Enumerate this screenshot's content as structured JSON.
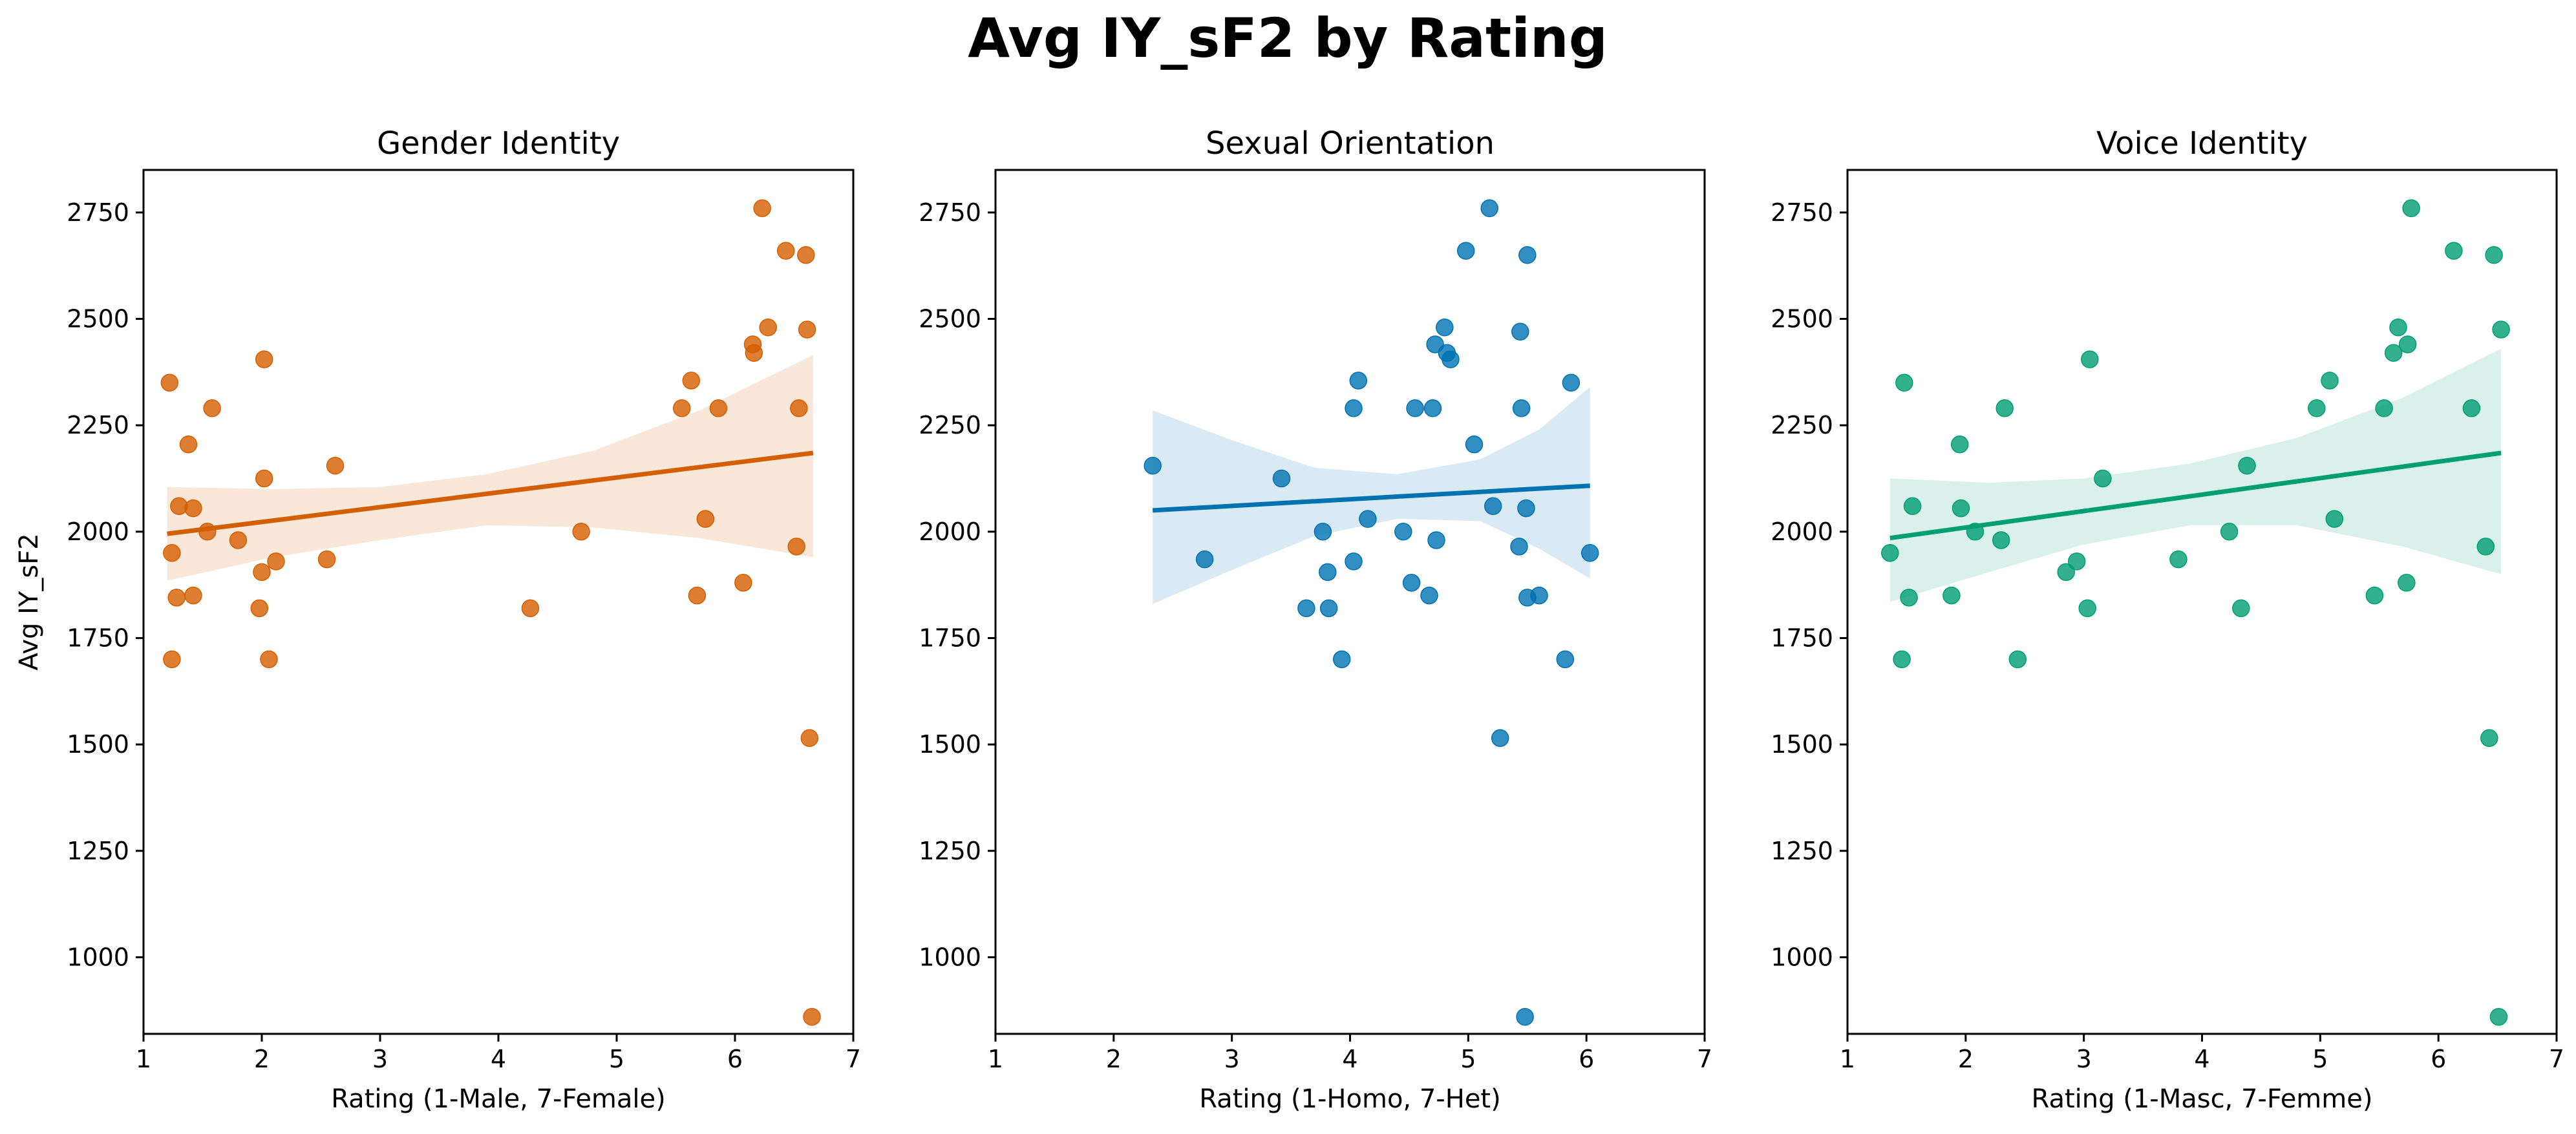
{
  "suptitle": "Avg IY_sF2 by Rating",
  "chart_data": [
    {
      "type": "scatter",
      "title": "Gender Identity",
      "xlabel": "Rating (1-Male, 7-Female)",
      "ylabel": "Avg IY_sF2",
      "xlim": [
        1,
        7
      ],
      "ylim": [
        820,
        2850
      ],
      "xticks": [
        1,
        2,
        3,
        4,
        5,
        6,
        7
      ],
      "yticks": [
        1000,
        1250,
        1500,
        1750,
        2000,
        2250,
        2500,
        2750
      ],
      "color": "#d55e00",
      "points": [
        [
          1.22,
          2350
        ],
        [
          1.24,
          1950
        ],
        [
          1.24,
          1700
        ],
        [
          1.28,
          1845
        ],
        [
          1.3,
          2060
        ],
        [
          1.38,
          2205
        ],
        [
          1.42,
          2055
        ],
        [
          1.42,
          1850
        ],
        [
          1.54,
          2000
        ],
        [
          1.58,
          2290
        ],
        [
          1.8,
          1980
        ],
        [
          1.98,
          1820
        ],
        [
          2.0,
          1905
        ],
        [
          2.02,
          2125
        ],
        [
          2.02,
          2405
        ],
        [
          2.06,
          1700
        ],
        [
          2.12,
          1930
        ],
        [
          2.55,
          1935
        ],
        [
          2.62,
          2155
        ],
        [
          4.27,
          1820
        ],
        [
          4.7,
          2000
        ],
        [
          5.55,
          2290
        ],
        [
          5.63,
          2355
        ],
        [
          5.68,
          1850
        ],
        [
          5.75,
          2030
        ],
        [
          5.86,
          2290
        ],
        [
          6.07,
          1880
        ],
        [
          6.15,
          2440
        ],
        [
          6.16,
          2420
        ],
        [
          6.23,
          2760
        ],
        [
          6.28,
          2480
        ],
        [
          6.43,
          2660
        ],
        [
          6.52,
          1965
        ],
        [
          6.54,
          2290
        ],
        [
          6.6,
          2650
        ],
        [
          6.61,
          2475
        ],
        [
          6.63,
          1515
        ],
        [
          6.65,
          860
        ]
      ],
      "fit_line": {
        "x": [
          1.2,
          6.66
        ],
        "y": [
          1995,
          2185
        ]
      },
      "ci_band": {
        "x": [
          1.2,
          2.1,
          3.0,
          3.9,
          4.8,
          5.7,
          6.66
        ],
        "upper": [
          2105,
          2100,
          2105,
          2135,
          2190,
          2285,
          2415
        ],
        "lower": [
          1885,
          1940,
          1980,
          2015,
          2010,
          1985,
          1940
        ]
      }
    },
    {
      "type": "scatter",
      "title": "Sexual Orientation",
      "xlabel": "Rating (1-Homo, 7-Het)",
      "ylabel": "",
      "xlim": [
        1,
        7
      ],
      "ylim": [
        820,
        2850
      ],
      "xticks": [
        1,
        2,
        3,
        4,
        5,
        6,
        7
      ],
      "yticks": [
        1000,
        1250,
        1500,
        1750,
        2000,
        2250,
        2500,
        2750
      ],
      "color": "#0072b2",
      "points": [
        [
          2.33,
          2155
        ],
        [
          2.77,
          1935
        ],
        [
          3.42,
          2125
        ],
        [
          3.63,
          1820
        ],
        [
          3.77,
          2000
        ],
        [
          3.81,
          1905
        ],
        [
          3.82,
          1820
        ],
        [
          3.93,
          1700
        ],
        [
          4.03,
          1930
        ],
        [
          4.03,
          2290
        ],
        [
          4.07,
          2355
        ],
        [
          4.15,
          2030
        ],
        [
          4.45,
          2000
        ],
        [
          4.52,
          1880
        ],
        [
          4.55,
          2290
        ],
        [
          4.67,
          1850
        ],
        [
          4.7,
          2290
        ],
        [
          4.72,
          2440
        ],
        [
          4.73,
          1980
        ],
        [
          4.8,
          2480
        ],
        [
          4.82,
          2420
        ],
        [
          4.85,
          2405
        ],
        [
          4.98,
          2660
        ],
        [
          5.05,
          2205
        ],
        [
          5.18,
          2760
        ],
        [
          5.21,
          2060
        ],
        [
          5.27,
          1515
        ],
        [
          5.43,
          1965
        ],
        [
          5.44,
          2470
        ],
        [
          5.45,
          2290
        ],
        [
          5.48,
          860
        ],
        [
          5.49,
          2055
        ],
        [
          5.5,
          1845
        ],
        [
          5.5,
          2650
        ],
        [
          5.6,
          1850
        ],
        [
          5.82,
          1700
        ],
        [
          5.87,
          2350
        ],
        [
          6.03,
          1950
        ]
      ],
      "fit_line": {
        "x": [
          2.33,
          6.03
        ],
        "y": [
          2050,
          2108
        ]
      },
      "ci_band": {
        "x": [
          2.33,
          3.0,
          3.7,
          4.4,
          5.1,
          5.6,
          6.03
        ],
        "upper": [
          2285,
          2215,
          2150,
          2135,
          2170,
          2240,
          2340
        ],
        "lower": [
          1830,
          1910,
          1990,
          2030,
          2025,
          1960,
          1890
        ]
      }
    },
    {
      "type": "scatter",
      "title": "Voice Identity",
      "xlabel": "Rating (1-Masc, 7-Femme)",
      "ylabel": "",
      "xlim": [
        1,
        7
      ],
      "ylim": [
        820,
        2850
      ],
      "xticks": [
        1,
        2,
        3,
        4,
        5,
        6,
        7
      ],
      "yticks": [
        1000,
        1250,
        1500,
        1750,
        2000,
        2250,
        2500,
        2750
      ],
      "color": "#009e73",
      "points": [
        [
          1.36,
          1950
        ],
        [
          1.46,
          1700
        ],
        [
          1.48,
          2350
        ],
        [
          1.52,
          1845
        ],
        [
          1.55,
          2060
        ],
        [
          1.88,
          1850
        ],
        [
          1.95,
          2205
        ],
        [
          1.96,
          2055
        ],
        [
          2.08,
          2000
        ],
        [
          2.3,
          1980
        ],
        [
          2.33,
          2290
        ],
        [
          2.44,
          1700
        ],
        [
          2.85,
          1905
        ],
        [
          2.94,
          1930
        ],
        [
          3.03,
          1820
        ],
        [
          3.05,
          2405
        ],
        [
          3.16,
          2125
        ],
        [
          3.8,
          1935
        ],
        [
          4.23,
          2000
        ],
        [
          4.33,
          1820
        ],
        [
          4.38,
          2155
        ],
        [
          4.97,
          2290
        ],
        [
          5.08,
          2355
        ],
        [
          5.12,
          2030
        ],
        [
          5.46,
          1850
        ],
        [
          5.54,
          2290
        ],
        [
          5.62,
          2420
        ],
        [
          5.66,
          2480
        ],
        [
          5.73,
          1880
        ],
        [
          5.74,
          2440
        ],
        [
          5.77,
          2760
        ],
        [
          6.13,
          2660
        ],
        [
          6.28,
          2290
        ],
        [
          6.4,
          1965
        ],
        [
          6.43,
          1515
        ],
        [
          6.47,
          2650
        ],
        [
          6.51,
          860
        ],
        [
          6.53,
          2475
        ]
      ],
      "fit_line": {
        "x": [
          1.36,
          6.53
        ],
        "y": [
          1985,
          2185
        ]
      },
      "ci_band": {
        "x": [
          1.36,
          2.2,
          3.0,
          3.9,
          4.8,
          5.7,
          6.53
        ],
        "upper": [
          2125,
          2115,
          2125,
          2160,
          2220,
          2315,
          2430
        ],
        "lower": [
          1835,
          1905,
          1970,
          2015,
          2015,
          1965,
          1900
        ]
      }
    }
  ]
}
